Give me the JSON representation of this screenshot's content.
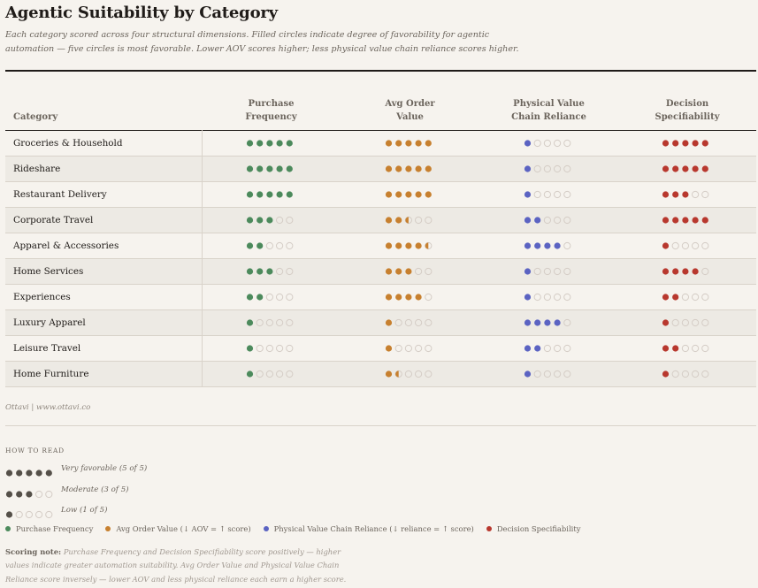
{
  "title": "Agentic Suitability by Category",
  "subtitle": "Each category scored across four structural dimensions. Filled circles indicate degree of favorability for agentic automation — five circles is most favorable. Lower AOV scores higher; less physical value chain reliance scores higher.",
  "colors": {
    "purchase_frequency": "#4c8a5c",
    "avg_order_value": "#c7802f",
    "physical_value_chain": "#5b63c2",
    "decision_specifiability": "#b8382e",
    "neutral": "#555049",
    "empty_stroke": "#d4ccc5"
  },
  "chart_data": {
    "type": "table",
    "title": "Agentic Suitability by Category",
    "max_score": 5,
    "columns": [
      {
        "key": "category",
        "label": "Category"
      },
      {
        "key": "purchase_frequency",
        "label": "Purchase Frequency"
      },
      {
        "key": "avg_order_value",
        "label": "Avg Order Value"
      },
      {
        "key": "physical_value_chain",
        "label": "Physical Value Chain Reliance"
      },
      {
        "key": "decision_specifiability",
        "label": "Decision Specifiability"
      }
    ],
    "rows": [
      {
        "category": "Groceries & Household",
        "purchase_frequency": 5,
        "avg_order_value": 5,
        "physical_value_chain": 1,
        "decision_specifiability": 5
      },
      {
        "category": "Rideshare",
        "purchase_frequency": 5,
        "avg_order_value": 5,
        "physical_value_chain": 1,
        "decision_specifiability": 5
      },
      {
        "category": "Restaurant Delivery",
        "purchase_frequency": 5,
        "avg_order_value": 5,
        "physical_value_chain": 1,
        "decision_specifiability": 3
      },
      {
        "category": "Corporate Travel",
        "purchase_frequency": 3,
        "avg_order_value": 2.5,
        "physical_value_chain": 2,
        "decision_specifiability": 5
      },
      {
        "category": "Apparel & Accessories",
        "purchase_frequency": 2,
        "avg_order_value": 4.5,
        "physical_value_chain": 4,
        "decision_specifiability": 1
      },
      {
        "category": "Home Services",
        "purchase_frequency": 3,
        "avg_order_value": 3,
        "physical_value_chain": 1,
        "decision_specifiability": 4
      },
      {
        "category": "Experiences",
        "purchase_frequency": 2,
        "avg_order_value": 4,
        "physical_value_chain": 1,
        "decision_specifiability": 2
      },
      {
        "category": "Luxury Apparel",
        "purchase_frequency": 1,
        "avg_order_value": 1,
        "physical_value_chain": 4,
        "decision_specifiability": 1
      },
      {
        "category": "Leisure Travel",
        "purchase_frequency": 1,
        "avg_order_value": 1,
        "physical_value_chain": 2,
        "decision_specifiability": 2
      },
      {
        "category": "Home Furniture",
        "purchase_frequency": 1,
        "avg_order_value": 1.5,
        "physical_value_chain": 1,
        "decision_specifiability": 1
      }
    ]
  },
  "credit": "Ottavi | www.ottavi.co",
  "how_to_read": {
    "heading": "HOW TO READ",
    "items": [
      {
        "score": 5,
        "label": "Very favorable (5 of 5)"
      },
      {
        "score": 3,
        "label": "Moderate (3 of 5)"
      },
      {
        "score": 1,
        "label": "Low (1 of 5)"
      }
    ]
  },
  "category_legend": [
    {
      "key": "purchase_frequency",
      "label": "Purchase Frequency"
    },
    {
      "key": "avg_order_value",
      "label": "Avg Order Value (↓ AOV = ↑ score)"
    },
    {
      "key": "physical_value_chain",
      "label": "Physical Value Chain Reliance (↓ reliance = ↑ score)"
    },
    {
      "key": "decision_specifiability",
      "label": "Decision Specifiability"
    }
  ],
  "scoring_note": {
    "label": "Scoring note:",
    "text": "Purchase Frequency and Decision Specifiability score positively — higher values indicate greater automation suitability. Avg Order Value and Physical Value Chain Reliance score inversely — lower AOV and less physical reliance each earn a higher score."
  }
}
